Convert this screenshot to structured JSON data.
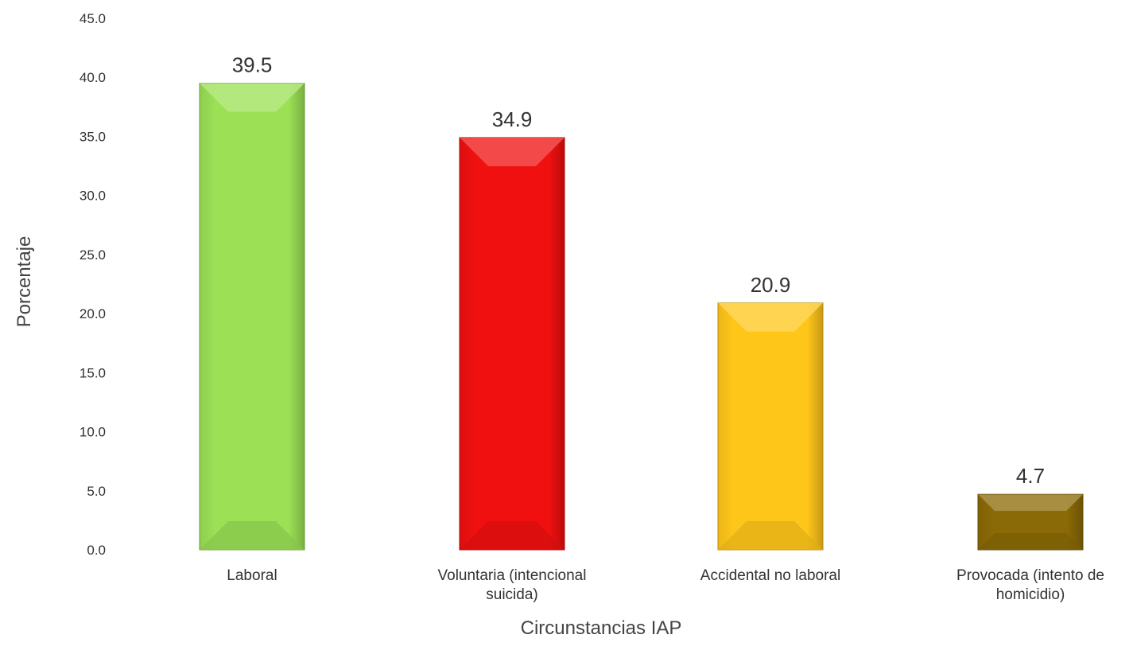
{
  "chart_data": {
    "type": "bar",
    "categories": [
      [
        "Laboral"
      ],
      [
        "Voluntaria (intencional",
        "suicida)"
      ],
      [
        "Accidental no laboral"
      ],
      [
        "Provocada (intento de",
        "homicidio)"
      ]
    ],
    "values": [
      39.5,
      34.9,
      20.9,
      4.7
    ],
    "data_labels": [
      "39.5",
      "34.9",
      "20.9",
      "4.7"
    ],
    "colors": [
      "#9be055",
      "#f01010",
      "#ffc61a",
      "#8a6a06"
    ],
    "xlabel": "Circunstancias IAP",
    "ylabel": "Porcentaje",
    "ylim": [
      0,
      45
    ],
    "yticks": [
      "0.0",
      "5.0",
      "10.0",
      "15.0",
      "20.0",
      "25.0",
      "30.0",
      "35.0",
      "40.0",
      "45.0"
    ],
    "grid": false,
    "legend": "none"
  }
}
